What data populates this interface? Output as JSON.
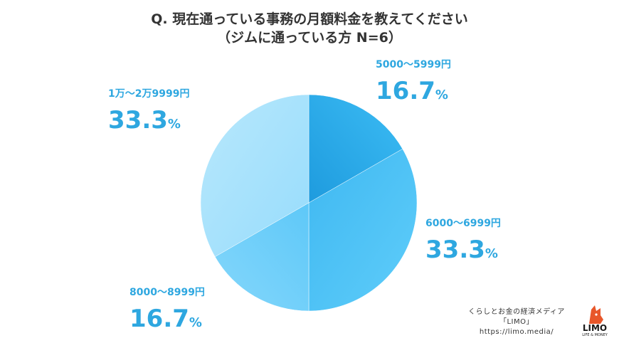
{
  "title_line1": "Q. 現在通っている事務の月額料金を教えてください",
  "title_line2": "（ジムに通っている方 N=6）",
  "chart_data": {
    "type": "pie",
    "slices": [
      {
        "label": "5000〜5999円",
        "value": 16.7,
        "value_text": "16.7",
        "color": "#2fb2ef"
      },
      {
        "label": "6000〜6999円",
        "value": 33.3,
        "value_text": "33.3",
        "color": "#4fc6f8"
      },
      {
        "label": "8000〜8999円",
        "value": 16.7,
        "value_text": "16.7",
        "color": "#6dd0fa"
      },
      {
        "label": "1万〜2万9999円",
        "value": 33.3,
        "value_text": "33.3",
        "color": "#a6e2fc"
      }
    ],
    "unit": "%"
  },
  "footer": {
    "line1": "くらしとお金の経済メディア",
    "line2": "「LIMO」",
    "line3": "https://limo.media/"
  },
  "logo": {
    "name": "LIMO",
    "tagline": "LIFE & MONEY",
    "color": "#e8572a"
  }
}
